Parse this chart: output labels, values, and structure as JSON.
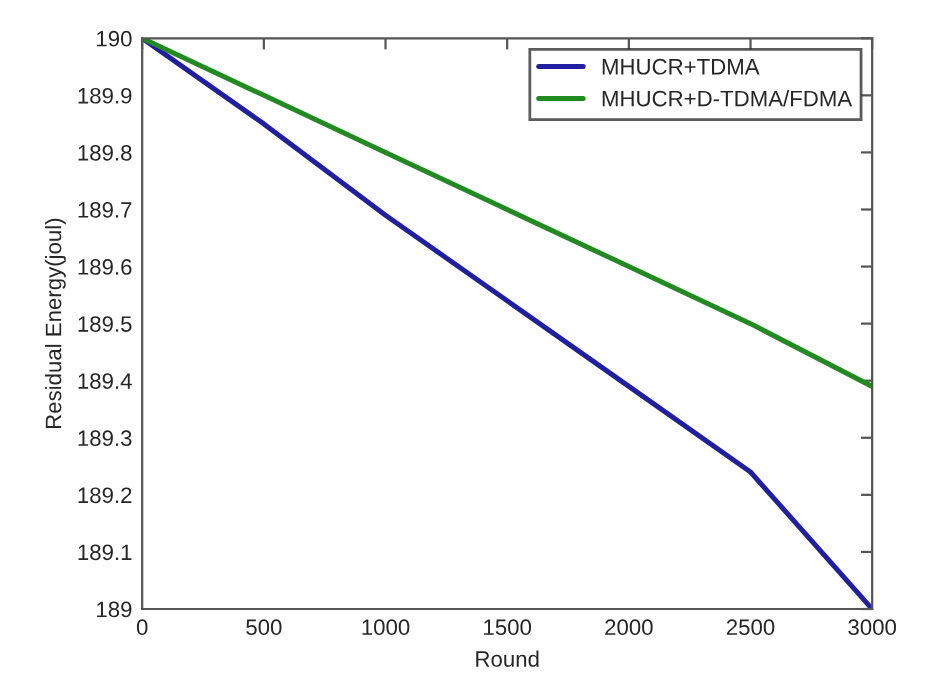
{
  "chart_data": {
    "type": "line",
    "xlabel": "Round",
    "ylabel": "Residual Energy(joul)",
    "x": [
      0,
      500,
      1000,
      1500,
      2000,
      2500,
      3000
    ],
    "series": [
      {
        "name": "MHUCR+TDMA",
        "color": "#1f1fa0",
        "values": [
          190,
          189.85,
          189.69,
          189.54,
          189.39,
          189.24,
          189.0
        ]
      },
      {
        "name": "MHUCR+D-TDMA/FDMA",
        "color": "#218a21",
        "values": [
          190,
          189.9,
          189.8,
          189.7,
          189.6,
          189.5,
          189.39
        ]
      }
    ],
    "xlim": [
      0,
      3000
    ],
    "ylim": [
      189,
      190
    ],
    "xticks": [
      0,
      500,
      1000,
      1500,
      2000,
      2500,
      3000
    ],
    "yticks": [
      189,
      189.1,
      189.2,
      189.3,
      189.4,
      189.5,
      189.6,
      189.7,
      189.8,
      189.9,
      190
    ],
    "grid": false,
    "legend": "top right",
    "marker": "none",
    "line_style": "solid"
  }
}
